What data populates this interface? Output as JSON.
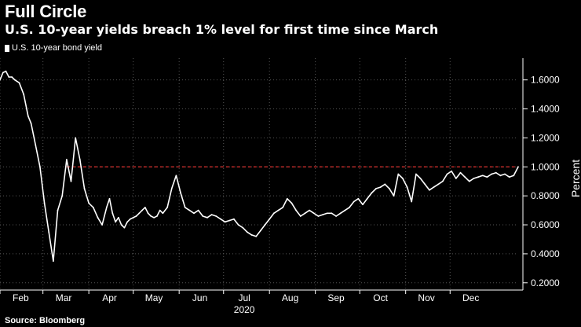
{
  "title": "Full Circle",
  "subtitle": "U.S. 10-year yields breach 1% level for first time since March",
  "legend": "U.S. 10-year bond yield",
  "source": "Source: Bloomberg",
  "colors": {
    "background": "#000000",
    "series": "#ffffff",
    "grid": "#555555",
    "reference": "#e0312e"
  },
  "chart_data": {
    "type": "line",
    "title": "Full Circle",
    "subtitle": "U.S. 10-year yields breach 1% level for first time since March",
    "series": [
      {
        "name": "U.S. 10-year bond yield",
        "x": [
          0,
          2,
          4,
          6,
          8,
          10,
          13,
          16,
          19,
          21,
          24,
          27,
          30,
          33,
          36,
          39,
          42,
          45,
          48,
          51,
          54,
          57,
          60,
          63,
          66,
          69,
          72,
          74,
          76,
          78,
          80,
          82,
          84,
          86,
          88,
          90,
          92,
          94,
          96,
          98,
          100,
          102,
          104,
          106,
          108,
          110,
          113,
          116,
          119,
          122,
          125,
          128,
          131,
          134,
          137,
          140,
          143,
          146,
          149,
          152,
          155,
          158,
          161,
          164,
          167,
          170,
          173,
          176,
          179,
          182,
          185,
          188,
          191,
          194,
          197,
          200,
          203,
          206,
          209,
          212,
          215,
          218,
          221,
          224,
          227,
          230,
          233,
          236,
          239,
          242,
          245,
          248,
          251,
          254,
          257,
          260,
          263,
          266,
          269,
          272,
          275,
          278,
          281,
          284,
          287,
          290,
          293,
          296,
          299,
          302,
          305,
          308,
          311,
          314,
          317,
          320,
          323,
          326,
          329,
          332,
          335,
          338,
          341,
          344,
          347,
          350
        ],
        "values": [
          1.6,
          1.65,
          1.66,
          1.62,
          1.62,
          1.6,
          1.58,
          1.5,
          1.35,
          1.3,
          1.15,
          1.0,
          0.75,
          0.55,
          0.35,
          0.7,
          0.8,
          1.05,
          0.9,
          1.2,
          1.05,
          0.85,
          0.75,
          0.72,
          0.65,
          0.6,
          0.72,
          0.78,
          0.68,
          0.62,
          0.65,
          0.6,
          0.58,
          0.62,
          0.64,
          0.65,
          0.66,
          0.68,
          0.7,
          0.72,
          0.68,
          0.66,
          0.65,
          0.66,
          0.7,
          0.68,
          0.72,
          0.85,
          0.94,
          0.82,
          0.72,
          0.7,
          0.68,
          0.7,
          0.66,
          0.65,
          0.67,
          0.66,
          0.64,
          0.62,
          0.63,
          0.64,
          0.6,
          0.58,
          0.55,
          0.53,
          0.52,
          0.56,
          0.6,
          0.64,
          0.68,
          0.7,
          0.72,
          0.78,
          0.75,
          0.7,
          0.66,
          0.68,
          0.7,
          0.68,
          0.66,
          0.67,
          0.68,
          0.68,
          0.66,
          0.68,
          0.7,
          0.72,
          0.76,
          0.78,
          0.74,
          0.78,
          0.82,
          0.85,
          0.86,
          0.88,
          0.85,
          0.8,
          0.95,
          0.92,
          0.86,
          0.76,
          0.95,
          0.92,
          0.88,
          0.84,
          0.86,
          0.88,
          0.9,
          0.95,
          0.97,
          0.92,
          0.96,
          0.93,
          0.9,
          0.92,
          0.93,
          0.94,
          0.93,
          0.95,
          0.96,
          0.94,
          0.95,
          0.93,
          0.94,
          1.0
        ]
      }
    ],
    "reference_line": {
      "value": 1.0,
      "style": "dashed",
      "color": "#e0312e"
    },
    "xdomain": [
      0,
      350
    ],
    "ylim": [
      0.15,
      1.75
    ],
    "yticks": [
      0.2,
      0.4,
      0.6,
      0.8,
      1.0,
      1.2,
      1.4,
      1.6
    ],
    "ytick_labels": [
      "0.2000",
      "0.4000",
      "0.6000",
      "0.8000",
      "1.0000",
      "1.2000",
      "1.4000",
      "1.6000"
    ],
    "xticks": [
      {
        "label": "Feb",
        "x": 14
      },
      {
        "label": "Mar",
        "x": 43
      },
      {
        "label": "Apr",
        "x": 74
      },
      {
        "label": "May",
        "x": 104
      },
      {
        "label": "Jun",
        "x": 135
      },
      {
        "label": "Jul",
        "x": 165
      },
      {
        "label": "Aug",
        "x": 196
      },
      {
        "label": "Sep",
        "x": 227
      },
      {
        "label": "Oct",
        "x": 257
      },
      {
        "label": "Nov",
        "x": 288
      },
      {
        "label": "Dec",
        "x": 318
      }
    ],
    "year_label": "2020",
    "ylabel": "Percent",
    "xlabel": "",
    "grid": true,
    "yaxis_side": "right"
  }
}
